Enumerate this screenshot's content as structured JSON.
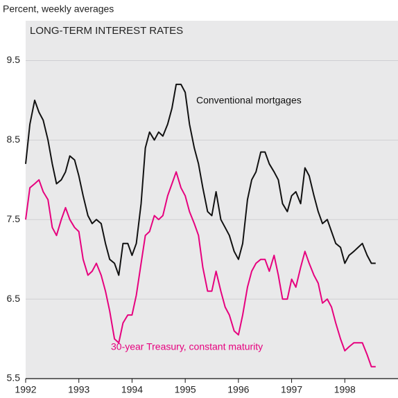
{
  "chart_data": {
    "type": "line",
    "title": "LONG-TERM INTEREST RATES",
    "y_label": "Percent, weekly averages",
    "x": [
      1992,
      1992.08,
      1992.17,
      1992.25,
      1992.33,
      1992.42,
      1992.5,
      1992.58,
      1992.67,
      1992.75,
      1992.83,
      1992.92,
      1993,
      1993.08,
      1993.17,
      1993.25,
      1993.33,
      1993.42,
      1993.5,
      1993.58,
      1993.67,
      1993.75,
      1993.83,
      1993.92,
      1994,
      1994.08,
      1994.17,
      1994.25,
      1994.33,
      1994.42,
      1994.5,
      1994.58,
      1994.67,
      1994.75,
      1994.83,
      1994.92,
      1995,
      1995.08,
      1995.17,
      1995.25,
      1995.33,
      1995.42,
      1995.5,
      1995.58,
      1995.67,
      1995.75,
      1995.83,
      1995.92,
      1996,
      1996.08,
      1996.17,
      1996.25,
      1996.33,
      1996.42,
      1996.5,
      1996.58,
      1996.67,
      1996.75,
      1996.83,
      1996.92,
      1997,
      1997.08,
      1997.17,
      1997.25,
      1997.33,
      1997.42,
      1997.5,
      1997.58,
      1997.67,
      1997.75,
      1997.83,
      1997.92,
      1998,
      1998.08,
      1998.17,
      1998.25,
      1998.33,
      1998.42,
      1998.5,
      1998.58
    ],
    "series": [
      {
        "name": "Conventional mortgages",
        "color": "#111111",
        "values": [
          8.2,
          8.7,
          9.0,
          8.85,
          8.75,
          8.5,
          8.2,
          7.95,
          8.0,
          8.1,
          8.3,
          8.25,
          8.05,
          7.8,
          7.55,
          7.45,
          7.5,
          7.45,
          7.2,
          7.0,
          6.95,
          6.8,
          7.2,
          7.2,
          7.05,
          7.2,
          7.7,
          8.4,
          8.6,
          8.5,
          8.6,
          8.55,
          8.7,
          8.9,
          9.2,
          9.2,
          9.1,
          8.7,
          8.4,
          8.2,
          7.9,
          7.6,
          7.55,
          7.85,
          7.5,
          7.4,
          7.3,
          7.1,
          7.0,
          7.2,
          7.75,
          8.0,
          8.1,
          8.35,
          8.35,
          8.2,
          8.1,
          8.0,
          7.7,
          7.6,
          7.8,
          7.85,
          7.7,
          8.15,
          8.05,
          7.8,
          7.6,
          7.45,
          7.5,
          7.35,
          7.2,
          7.15,
          6.95,
          7.05,
          7.1,
          7.15,
          7.2,
          7.05,
          6.95,
          6.95
        ]
      },
      {
        "name": "30-year Treasury, constant maturity",
        "color": "#e6007e",
        "values": [
          7.5,
          7.9,
          7.95,
          8.0,
          7.85,
          7.75,
          7.4,
          7.3,
          7.5,
          7.65,
          7.5,
          7.4,
          7.35,
          7.0,
          6.8,
          6.85,
          6.95,
          6.8,
          6.6,
          6.35,
          6.0,
          5.95,
          6.2,
          6.3,
          6.3,
          6.55,
          6.95,
          7.3,
          7.35,
          7.55,
          7.5,
          7.55,
          7.8,
          7.95,
          8.1,
          7.9,
          7.8,
          7.6,
          7.45,
          7.3,
          6.9,
          6.6,
          6.6,
          6.85,
          6.6,
          6.4,
          6.3,
          6.1,
          6.05,
          6.3,
          6.65,
          6.85,
          6.95,
          7.0,
          7.0,
          6.85,
          7.05,
          6.8,
          6.5,
          6.5,
          6.75,
          6.65,
          6.9,
          7.1,
          6.95,
          6.8,
          6.7,
          6.45,
          6.5,
          6.4,
          6.2,
          6.0,
          5.85,
          5.9,
          5.95,
          5.95,
          5.95,
          5.8,
          5.65,
          5.65
        ]
      }
    ],
    "xlim": [
      1992,
      1999
    ],
    "xticks": [
      1992,
      1993,
      1994,
      1995,
      1996,
      1997,
      1998
    ],
    "ylim": [
      5.5,
      10
    ],
    "yticks": [
      5.5,
      6.5,
      7.5,
      8.5,
      9.5
    ],
    "grid": true,
    "background": "#e9e9ea"
  }
}
